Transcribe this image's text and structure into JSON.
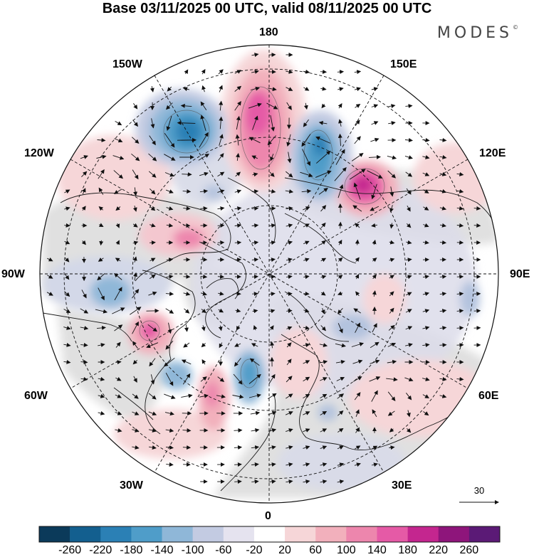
{
  "title": "Base 03/11/2025 00 UTC, valid 08/11/2025 00 UTC",
  "brand": {
    "name": "MODES",
    "mark": "©"
  },
  "map": {
    "projection": "north-polar-stereographic",
    "longitude_labels": {
      "top": "180",
      "upper_left_150": "150W",
      "upper_right_150": "150E",
      "left_120": "120W",
      "right_120": "120E",
      "left_90": "90W",
      "right_90": "90E",
      "left_60": "60W",
      "right_60": "60E",
      "lower_left_30": "30W",
      "lower_right_30": "30E",
      "bottom": "0"
    },
    "colors": {
      "coast": "#1a1a1a",
      "graticule": "#111111",
      "land_gray": "#d9d9d9"
    }
  },
  "vector_reference": {
    "label": "30"
  },
  "colorbar": {
    "ticks": [
      "-260",
      "-220",
      "-180",
      "-140",
      "-100",
      "-60",
      "-20",
      "20",
      "60",
      "100",
      "140",
      "180",
      "220",
      "260"
    ],
    "colors": [
      "#0b3a5a",
      "#135f8f",
      "#2b80b5",
      "#4f9dc9",
      "#8fb7d8",
      "#c3cbe2",
      "#e5e3ef",
      "#ffffff",
      "#f6d6d8",
      "#f2b0bc",
      "#ed86ad",
      "#e55aa6",
      "#c4268f",
      "#8e157b",
      "#5b1a76"
    ]
  }
}
